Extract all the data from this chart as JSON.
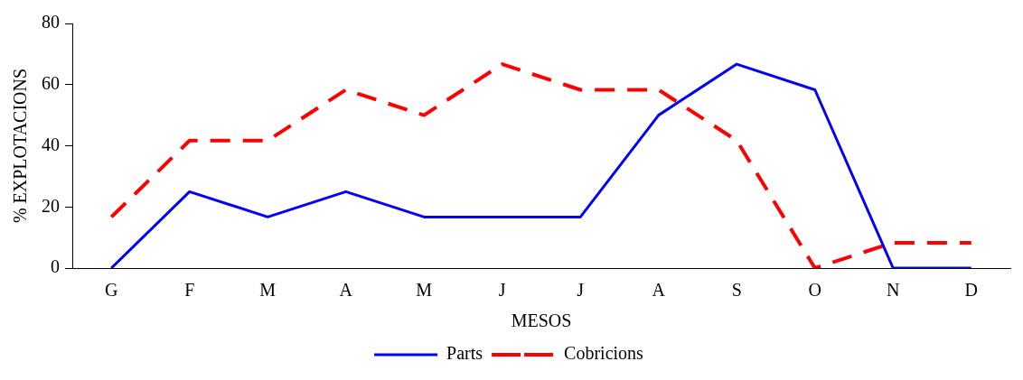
{
  "chart_data": {
    "type": "line",
    "xlabel": "MESOS",
    "ylabel": "% EXPLOTACIONS",
    "categories": [
      "G",
      "F",
      "M",
      "A",
      "M",
      "J",
      "J",
      "A",
      "S",
      "O",
      "N",
      "D"
    ],
    "series": [
      {
        "name": "Parts",
        "color": "#0000ff",
        "line_style": "solid",
        "values": [
          0,
          25,
          16.7,
          25,
          16.7,
          16.7,
          16.7,
          50,
          66.7,
          58.3,
          0,
          0
        ]
      },
      {
        "name": "Cobricions",
        "color": "#ff0000",
        "line_style": "dashed",
        "values": [
          16.7,
          41.7,
          41.7,
          58.3,
          50,
          66.7,
          58.3,
          58.3,
          41.7,
          0,
          8.3,
          8.3
        ]
      }
    ],
    "ylim": [
      0,
      80
    ],
    "yticks": [
      0,
      20,
      40,
      60,
      80
    ],
    "grid": false,
    "legend": "bottom",
    "marker": "none"
  }
}
